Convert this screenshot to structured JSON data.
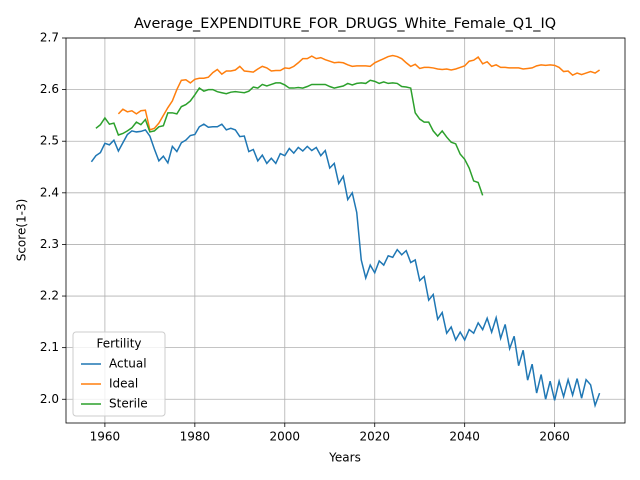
{
  "chart_data": {
    "type": "line",
    "title": "Average_EXPENDITURE_FOR_DRUGS_White_Female_Q1_IQ",
    "x_label": "Years",
    "y_label": "Score(1-3)",
    "legend_title": "Fertility",
    "legend_loc": "lower left",
    "grid": true,
    "x": [
      1957,
      1958,
      1959,
      1960,
      1961,
      1962,
      1963,
      1964,
      1965,
      1966,
      1967,
      1968,
      1969,
      1970,
      1971,
      1972,
      1973,
      1974,
      1975,
      1976,
      1977,
      1978,
      1979,
      1980,
      1981,
      1982,
      1983,
      1984,
      1985,
      1986,
      1987,
      1988,
      1989,
      1990,
      1991,
      1992,
      1993,
      1994,
      1995,
      1996,
      1997,
      1998,
      1999,
      2000,
      2001,
      2002,
      2003,
      2004,
      2005,
      2006,
      2007,
      2008,
      2009,
      2010,
      2011,
      2012,
      2013,
      2014,
      2015,
      2016,
      2017,
      2018,
      2019,
      2020,
      2021,
      2022,
      2023,
      2024,
      2025,
      2026,
      2027,
      2028,
      2029,
      2030,
      2031,
      2032,
      2033,
      2034,
      2035,
      2036,
      2037,
      2038,
      2039,
      2040,
      2041,
      2042,
      2043,
      2044,
      2045,
      2046,
      2047,
      2048,
      2049,
      2050,
      2051,
      2052,
      2053,
      2054,
      2055,
      2056,
      2057,
      2058,
      2059,
      2060,
      2061,
      2062,
      2063,
      2064,
      2065,
      2066,
      2067,
      2068,
      2069,
      2070
    ],
    "series": [
      {
        "name": "Actual",
        "color": "#1f77b4",
        "values": [
          2.46,
          2.472,
          2.478,
          2.496,
          2.493,
          2.502,
          2.481,
          2.497,
          2.513,
          2.52,
          2.518,
          2.519,
          2.522,
          2.51,
          2.485,
          2.462,
          2.471,
          2.458,
          2.49,
          2.48,
          2.497,
          2.502,
          2.511,
          2.513,
          2.528,
          2.533,
          2.527,
          2.528,
          2.528,
          2.533,
          2.522,
          2.525,
          2.522,
          2.509,
          2.51,
          2.48,
          2.484,
          2.462,
          2.473,
          2.457,
          2.467,
          2.457,
          2.476,
          2.472,
          2.486,
          2.477,
          2.488,
          2.481,
          2.49,
          2.482,
          2.488,
          2.472,
          2.482,
          2.448,
          2.457,
          2.418,
          2.432,
          2.387,
          2.4,
          2.362,
          2.27,
          2.235,
          2.26,
          2.245,
          2.268,
          2.26,
          2.278,
          2.275,
          2.29,
          2.28,
          2.288,
          2.265,
          2.27,
          2.23,
          2.238,
          2.192,
          2.203,
          2.155,
          2.168,
          2.128,
          2.14,
          2.115,
          2.13,
          2.115,
          2.135,
          2.128,
          2.148,
          2.135,
          2.157,
          2.13,
          2.158,
          2.118,
          2.145,
          2.098,
          2.122,
          2.065,
          2.095,
          2.037,
          2.068,
          2.012,
          2.048,
          2.0,
          2.035,
          1.998,
          2.035,
          2.005,
          2.038,
          2.008,
          2.04,
          2.002,
          2.038,
          2.028,
          1.988,
          2.012
        ]
      },
      {
        "name": "Ideal",
        "color": "#ff7f0e",
        "values": [
          null,
          null,
          null,
          null,
          null,
          null,
          2.553,
          2.562,
          2.557,
          2.559,
          2.553,
          2.559,
          2.56,
          2.522,
          2.525,
          2.535,
          2.55,
          2.565,
          2.578,
          2.6,
          2.618,
          2.619,
          2.613,
          2.62,
          2.622,
          2.622,
          2.624,
          2.633,
          2.639,
          2.63,
          2.636,
          2.636,
          2.638,
          2.645,
          2.636,
          2.635,
          2.634,
          2.64,
          2.645,
          2.642,
          2.636,
          2.637,
          2.637,
          2.642,
          2.641,
          2.645,
          2.652,
          2.66,
          2.66,
          2.665,
          2.66,
          2.662,
          2.658,
          2.655,
          2.652,
          2.653,
          2.652,
          2.648,
          2.645,
          2.646,
          2.646,
          2.646,
          2.645,
          2.652,
          2.656,
          2.66,
          2.664,
          2.666,
          2.664,
          2.66,
          2.652,
          2.645,
          2.649,
          2.641,
          2.643,
          2.643,
          2.642,
          2.64,
          2.639,
          2.64,
          2.638,
          2.64,
          2.643,
          2.646,
          2.655,
          2.657,
          2.663,
          2.65,
          2.654,
          2.645,
          2.648,
          2.643,
          2.643,
          2.642,
          2.642,
          2.642,
          2.64,
          2.641,
          2.642,
          2.646,
          2.648,
          2.647,
          2.648,
          2.647,
          2.643,
          2.635,
          2.636,
          2.628,
          2.632,
          2.629,
          2.632,
          2.635,
          2.632,
          2.638
        ]
      },
      {
        "name": "Sterile",
        "color": "#2ca02c",
        "values": [
          null,
          2.525,
          2.532,
          2.545,
          2.533,
          2.535,
          2.512,
          2.515,
          2.52,
          2.526,
          2.537,
          2.532,
          2.542,
          2.518,
          2.52,
          2.528,
          2.53,
          2.555,
          2.555,
          2.553,
          2.567,
          2.571,
          2.578,
          2.59,
          2.603,
          2.597,
          2.6,
          2.6,
          2.596,
          2.594,
          2.592,
          2.595,
          2.596,
          2.595,
          2.594,
          2.597,
          2.605,
          2.603,
          2.61,
          2.607,
          2.61,
          2.613,
          2.613,
          2.609,
          2.603,
          2.603,
          2.604,
          2.603,
          2.606,
          2.61,
          2.61,
          2.61,
          2.61,
          2.606,
          2.603,
          2.605,
          2.607,
          2.612,
          2.609,
          2.612,
          2.613,
          2.612,
          2.618,
          2.616,
          2.612,
          2.615,
          2.612,
          2.613,
          2.612,
          2.606,
          2.605,
          2.603,
          2.555,
          2.543,
          2.537,
          2.537,
          2.52,
          2.51,
          2.52,
          2.508,
          2.498,
          2.495,
          2.475,
          2.465,
          2.448,
          2.423,
          2.42,
          2.395,
          null,
          null,
          null,
          null,
          null,
          null,
          null,
          null,
          null,
          null,
          null,
          null,
          null,
          null,
          null,
          null,
          null,
          null,
          null,
          null,
          null,
          null,
          null,
          null,
          null,
          null
        ]
      }
    ],
    "xlim": [
      1951.35,
      2075.65
    ],
    "xticks": [
      1960,
      1980,
      2000,
      2020,
      2040,
      2060
    ],
    "ylim": [
      1.954,
      2.7
    ],
    "yticks": [
      {
        "value": 2.0,
        "label": "2.0"
      },
      2.1,
      2.2,
      2.3,
      2.4,
      2.5,
      2.6,
      2.7
    ]
  }
}
